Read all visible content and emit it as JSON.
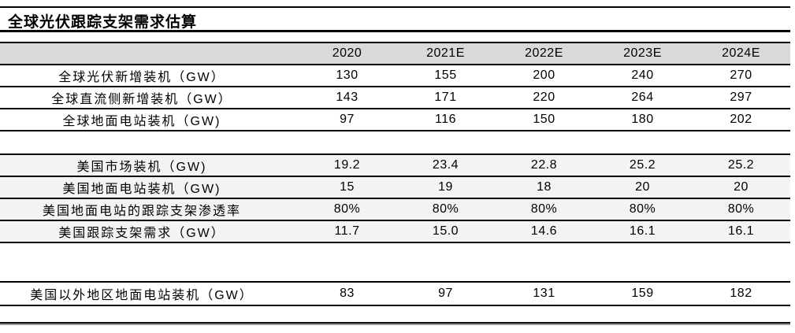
{
  "colors": {
    "header_row_bg": "#d9d9d9",
    "shaded_row_bg": "#f3f3f3",
    "rule": "#000000"
  },
  "chart_data": {
    "type": "table",
    "title": "全球光伏跟踪支架需求估算",
    "columns": [
      "2020",
      "2021E",
      "2022E",
      "2023E",
      "2024E"
    ],
    "sections": [
      {
        "shaded": false,
        "rows": [
          {
            "label": "全球光伏新增装机（GW）",
            "values": [
              "130",
              "155",
              "200",
              "240",
              "270"
            ]
          },
          {
            "label": "全球直流侧新增装机（GW）",
            "values": [
              "143",
              "171",
              "220",
              "264",
              "297"
            ]
          },
          {
            "label": "全球地面电站装机（GW)",
            "values": [
              "97",
              "116",
              "150",
              "180",
              "202"
            ]
          }
        ]
      },
      {
        "shaded": true,
        "rows": [
          {
            "label": "美国市场装机（GW)",
            "values": [
              "19.2",
              "23.4",
              "22.8",
              "25.2",
              "25.2"
            ]
          },
          {
            "label": "美国地面电站装机（GW)",
            "values": [
              "15",
              "19",
              "18",
              "20",
              "20"
            ]
          },
          {
            "label": "美国地面电站的跟踪支架渗透率",
            "values": [
              "80%",
              "80%",
              "80%",
              "80%",
              "80%"
            ]
          },
          {
            "label": "美国跟踪支架需求（GW）",
            "values": [
              "11.7",
              "15.0",
              "14.6",
              "16.1",
              "16.1"
            ]
          }
        ]
      },
      {
        "shaded": false,
        "rows": [
          {
            "label": "美国以外地区地面电站装机（GW）",
            "values": [
              "83",
              "97",
              "131",
              "159",
              "182"
            ]
          }
        ]
      }
    ]
  }
}
